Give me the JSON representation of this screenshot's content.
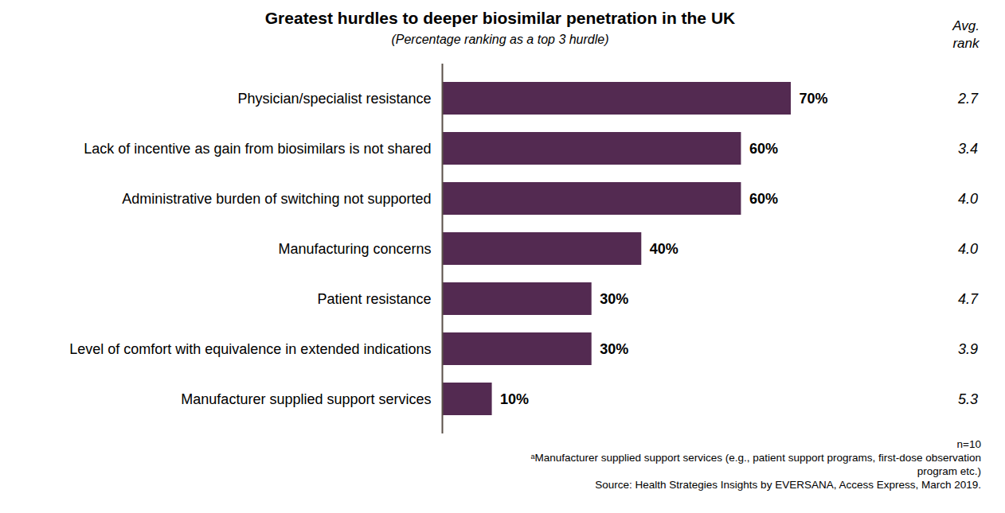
{
  "chart_data": {
    "type": "bar",
    "orientation": "horizontal",
    "title": "Greatest hurdles to deeper biosimilar penetration in the UK",
    "subtitle": "(Percentage ranking as a top 3 hurdle)",
    "categories": [
      "Physician/specialist resistance",
      "Lack of incentive as gain from biosimilars is not shared",
      "Administrative burden of switching not supported",
      "Manufacturing concerns",
      "Patient resistance",
      "Level of comfort with equivalence in extended indications",
      "Manufacturer supplied support services"
    ],
    "values": [
      70,
      60,
      60,
      40,
      30,
      30,
      10
    ],
    "value_labels": [
      "70%",
      "60%",
      "60%",
      "40%",
      "30%",
      "30%",
      "10%"
    ],
    "data_labels": true,
    "color": "#532a51",
    "xlim": [
      0,
      70
    ],
    "tick_labels": "y",
    "grid": false,
    "avg_rank_label": "Avg. rank",
    "avg_rank": [
      2.7,
      3.4,
      4.0,
      4.0,
      4.7,
      3.9,
      5.3
    ],
    "avg_rank_labels": [
      "2.7",
      "3.4",
      "4.0",
      "4.0",
      "4.7",
      "3.9",
      "5.3"
    ],
    "notes": [
      "n=10",
      "ᵃManufacturer supplied support services (e.g., patient support programs, first-dose observation program etc.)",
      "Source: Health Strategies Insights by EVERSANA, Access Express, March 2019."
    ]
  }
}
